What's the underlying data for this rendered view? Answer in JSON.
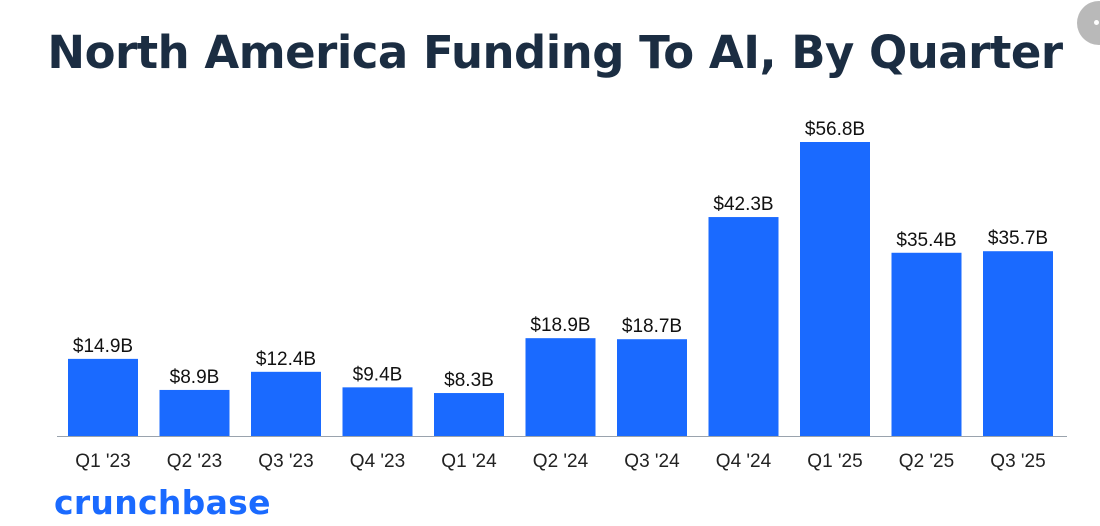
{
  "chart_data": {
    "type": "bar",
    "title": "North America Funding To AI, By Quarter",
    "categories": [
      "Q1 '23",
      "Q2 '23",
      "Q3 '23",
      "Q4 '23",
      "Q1 '24",
      "Q2 '24",
      "Q3 '24",
      "Q4 '24",
      "Q1 '25",
      "Q2 '25",
      "Q3 '25"
    ],
    "values": [
      14.9,
      8.9,
      12.4,
      9.4,
      8.3,
      18.9,
      18.7,
      42.3,
      56.8,
      35.4,
      35.7
    ],
    "value_labels": [
      "$14.9B",
      "$8.9B",
      "$12.4B",
      "$9.4B",
      "$8.3B",
      "$18.9B",
      "$18.7B",
      "$42.3B",
      "$56.8B",
      "$35.4B",
      "$35.7B"
    ],
    "unit": "USD billions",
    "xlabel": "",
    "ylabel": "",
    "ylim": [
      0,
      56.8
    ],
    "grid": false,
    "legend": "none",
    "bar_color": "#1a6aff"
  },
  "branding": {
    "logo_text": "crunchbase",
    "logo_color": "#1a6aff"
  },
  "colors": {
    "title": "#1b2d42",
    "axis": "#9aa3ad"
  }
}
